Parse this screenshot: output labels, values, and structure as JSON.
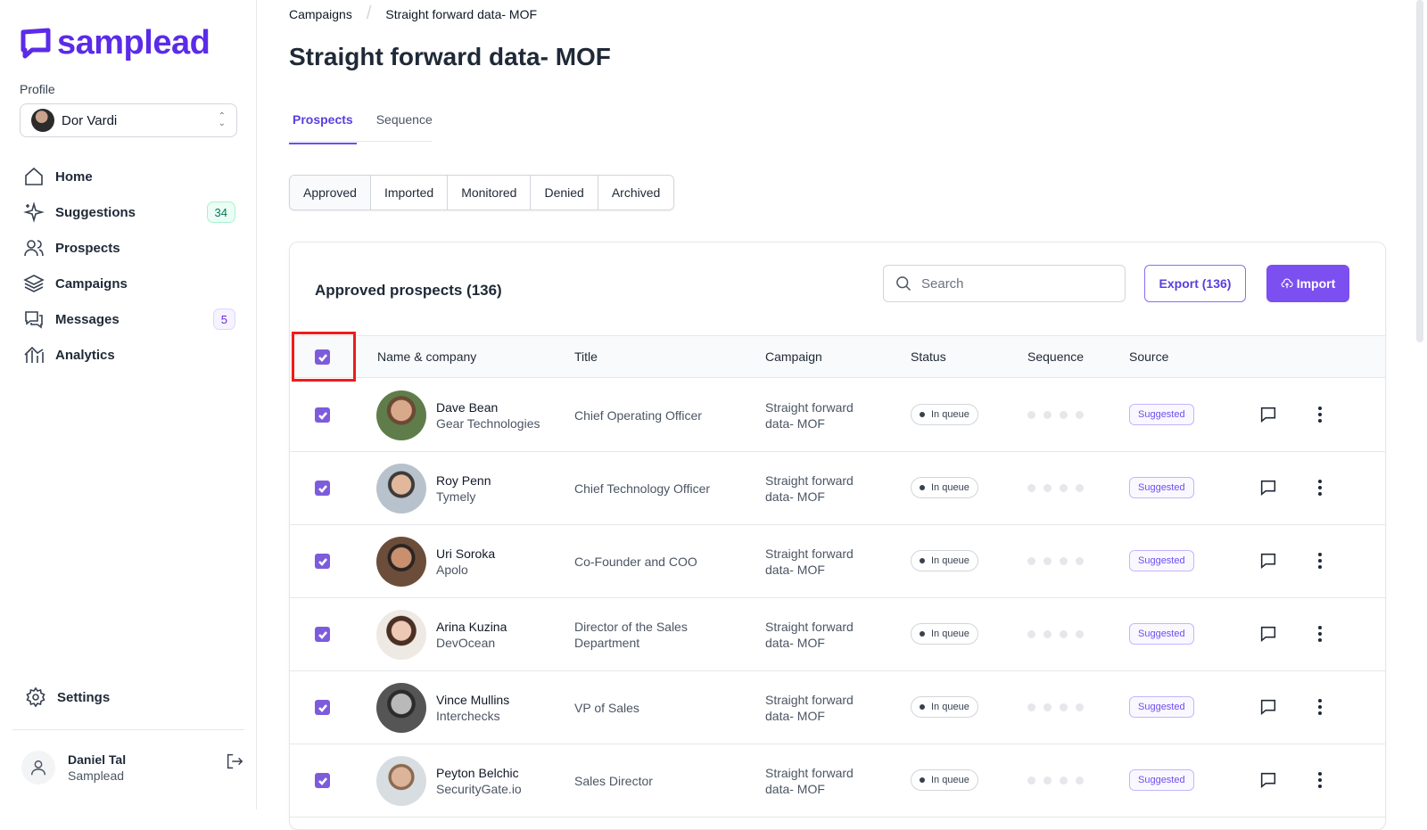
{
  "brand": {
    "name": "samplead",
    "color": "#5b2be8"
  },
  "sidebar": {
    "profile_label": "Profile",
    "profile_name": "Dor Vardi",
    "nav": [
      {
        "label": "Home",
        "icon": "home-icon"
      },
      {
        "label": "Suggestions",
        "icon": "sparkles-icon",
        "badge": "34"
      },
      {
        "label": "Prospects",
        "icon": "users-icon"
      },
      {
        "label": "Campaigns",
        "icon": "layers-icon"
      },
      {
        "label": "Messages",
        "icon": "chat-icon",
        "badge": "5"
      },
      {
        "label": "Analytics",
        "icon": "analytics-icon"
      }
    ],
    "settings_label": "Settings",
    "user": {
      "name": "Daniel Tal",
      "org": "Samplead"
    }
  },
  "breadcrumb": [
    "Campaigns",
    "Straight forward data- MOF"
  ],
  "page_title": "Straight forward data- MOF",
  "tabs": [
    {
      "label": "Prospects",
      "active": true
    },
    {
      "label": "Sequence",
      "active": false
    }
  ],
  "filters": [
    "Approved",
    "Imported",
    "Monitored",
    "Denied",
    "Archived"
  ],
  "card": {
    "title": "Approved prospects (136)",
    "search_placeholder": "Search",
    "export_label": "Export (136)",
    "import_label": "Import"
  },
  "table": {
    "headers": {
      "name": "Name & company",
      "title": "Title",
      "campaign": "Campaign",
      "status": "Status",
      "sequence": "Sequence",
      "source": "Source"
    },
    "rows": [
      {
        "name": "Dave Bean",
        "company": "Gear Technologies",
        "title": "Chief Operating Officer",
        "campaign": "Straight forward data- MOF",
        "status": "In queue",
        "source": "Suggested"
      },
      {
        "name": "Roy Penn",
        "company": "Tymely",
        "title": "Chief Technology Officer",
        "campaign": "Straight forward data- MOF",
        "status": "In queue",
        "source": "Suggested"
      },
      {
        "name": "Uri Soroka",
        "company": "Apolo",
        "title": "Co-Founder and COO",
        "campaign": "Straight forward data- MOF",
        "status": "In queue",
        "source": "Suggested"
      },
      {
        "name": "Arina Kuzina",
        "company": "DevOcean",
        "title": "Director of the Sales Department",
        "campaign": "Straight forward data- MOF",
        "status": "In queue",
        "source": "Suggested"
      },
      {
        "name": "Vince Mullins",
        "company": "Interchecks",
        "title": "VP of Sales",
        "campaign": "Straight forward data- MOF",
        "status": "In queue",
        "source": "Suggested"
      },
      {
        "name": "Peyton Belchic",
        "company": "SecurityGate.io",
        "title": "Sales Director",
        "campaign": "Straight forward data- MOF",
        "status": "In queue",
        "source": "Suggested"
      }
    ]
  }
}
